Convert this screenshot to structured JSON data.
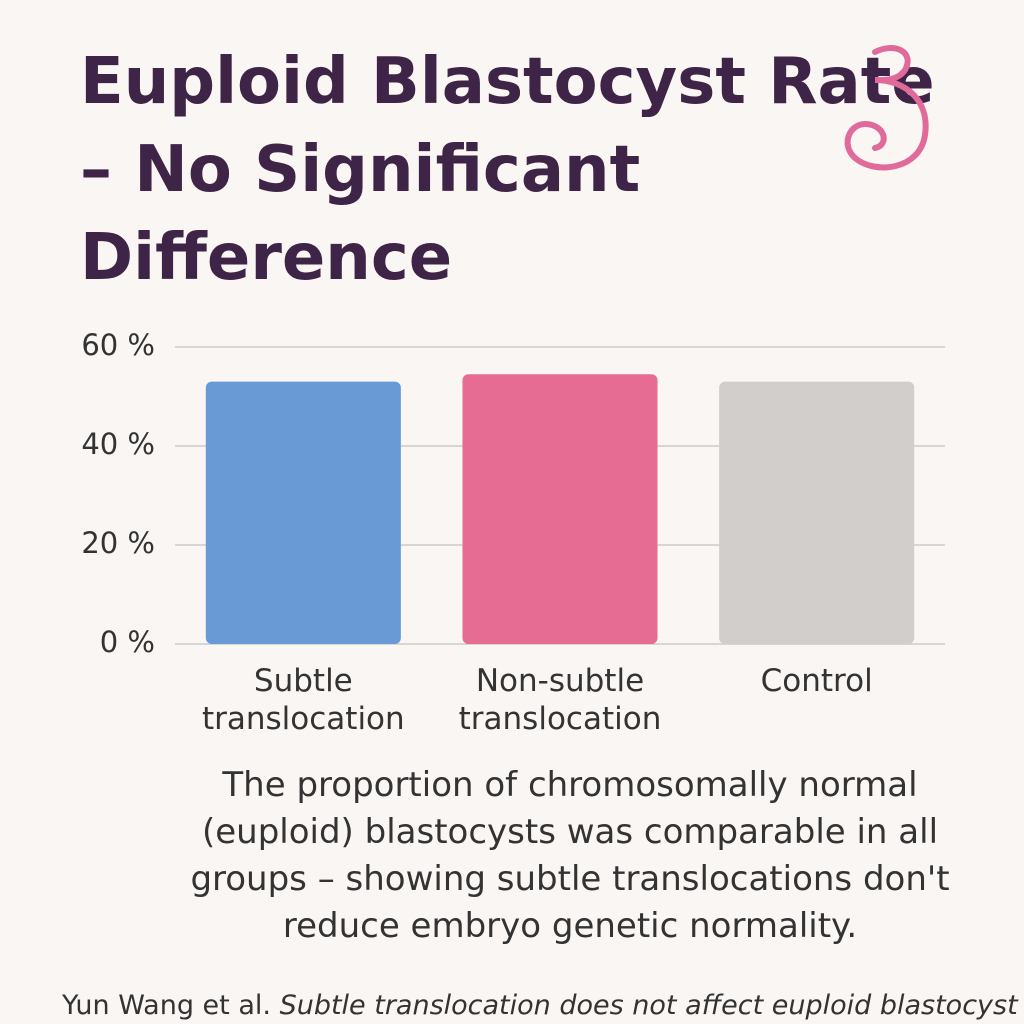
{
  "chart_data": {
    "type": "bar",
    "title": "Euploid Blastocyst Rate – No Significant Difference",
    "categories": [
      "Subtle translocation",
      "Non-subtle translocation",
      "Control"
    ],
    "values": [
      53,
      54.5,
      53
    ],
    "colors": [
      "#6a9ad6",
      "#e66c94",
      "#d1cecb"
    ],
    "ylim": [
      0,
      60
    ],
    "yticks": [
      {
        "value": 0,
        "label": "0 %"
      },
      {
        "value": 20,
        "label": "20 %"
      },
      {
        "value": 40,
        "label": "40 %"
      },
      {
        "value": 60,
        "label": "60 %"
      }
    ],
    "grid": true,
    "caption": "The proportion of chromosomally normal (euploid) blastocysts was comparable in all groups – showing subtle translocations don't reduce embryo genetic normality.",
    "citation": {
      "authors": "Yun Wang et al.",
      "title": "Subtle translocation does not affect euploid blastocyst"
    }
  }
}
